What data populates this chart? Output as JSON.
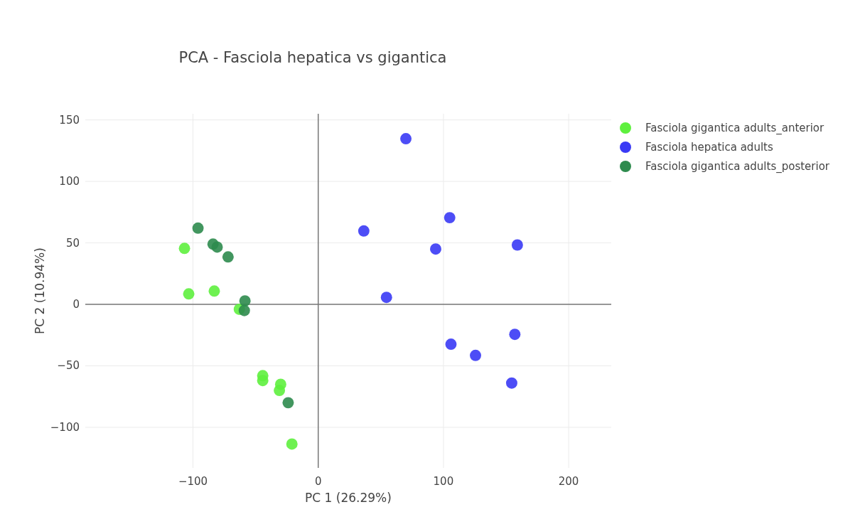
{
  "chart_data": {
    "type": "scatter",
    "title": "PCA - Fasciola hepatica vs gigantica",
    "xlabel": "PC 1 (26.29%)",
    "ylabel": "PC 2 (10.94%)",
    "xlim": [
      -186,
      234
    ],
    "ylim": [
      -133,
      155
    ],
    "xticks": [
      -100,
      0,
      100,
      200
    ],
    "yticks": [
      -100,
      -50,
      0,
      50,
      100,
      150
    ],
    "grid": true,
    "legend": "top right",
    "marker": "circle",
    "series": [
      {
        "name": "Fasciola gigantica adults_anterior",
        "color": "#5ef03e",
        "x": [
          -106.8,
          -103.4,
          -83,
          -63,
          -44.3,
          -44.3,
          -30,
          -31,
          -21
        ],
        "values": [
          45.5,
          8.5,
          10.8,
          -4,
          -58,
          -62,
          -65,
          -70,
          -113.6
        ]
      },
      {
        "name": "Fasciola hepatica adults",
        "color": "#3a3af5",
        "x": [
          70,
          36.4,
          105,
          93.8,
          159,
          54.5,
          106,
          157,
          125.6,
          154.5
        ],
        "values": [
          134.7,
          59.7,
          70.5,
          45,
          48.3,
          5.7,
          -32.4,
          -24.4,
          -41.5,
          -64
        ]
      },
      {
        "name": "Fasciola gigantica adults_posterior",
        "color": "#2e8b4e",
        "x": [
          -96,
          -84,
          -80.7,
          -72,
          -58.5,
          -59,
          -24
        ],
        "values": [
          62,
          49,
          46.6,
          38.6,
          2.8,
          -5,
          -80
        ]
      }
    ]
  }
}
